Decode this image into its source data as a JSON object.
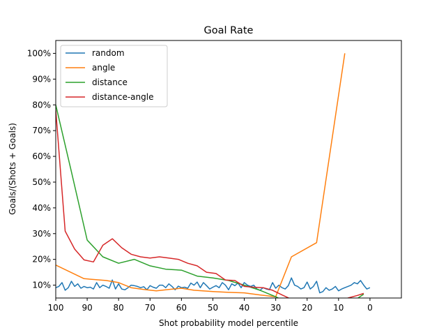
{
  "chart_data": {
    "type": "line",
    "title": "Goal Rate",
    "xlabel": "Shot probability model percentile",
    "ylabel": "Goals/(Shots + Goals)",
    "xlim": [
      100,
      -10
    ],
    "ylim": [
      0.05,
      1.05
    ],
    "x_ticks": [
      100,
      90,
      80,
      70,
      60,
      50,
      40,
      30,
      20,
      10,
      0
    ],
    "x_tick_labels": [
      "100",
      "90",
      "80",
      "70",
      "60",
      "50",
      "40",
      "30",
      "20",
      "10",
      "0"
    ],
    "y_ticks": [
      0.1,
      0.2,
      0.3,
      0.4,
      0.5,
      0.6,
      0.7,
      0.8,
      0.9,
      1.0
    ],
    "y_tick_labels": [
      "10%",
      "20%",
      "30%",
      "40%",
      "50%",
      "60%",
      "70%",
      "80%",
      "90%",
      "100%"
    ],
    "grid": false,
    "legend_position": "top-left",
    "series": [
      {
        "name": "random",
        "color": "#1f77b4",
        "x": [
          100,
          99,
          98,
          97,
          96,
          95,
          94,
          93,
          92,
          91,
          90,
          89,
          88,
          87,
          86,
          85,
          84,
          83,
          82,
          81,
          80,
          79,
          78,
          77,
          76,
          75,
          74,
          73,
          72,
          71,
          70,
          69,
          68,
          67,
          66,
          65,
          64,
          63,
          62,
          61,
          60,
          59,
          58,
          57,
          56,
          55,
          54,
          53,
          52,
          51,
          50,
          49,
          48,
          47,
          46,
          45,
          44,
          43,
          42,
          41,
          40,
          39,
          38,
          37,
          36,
          35,
          34,
          33,
          32,
          31,
          30,
          29,
          28,
          27,
          26,
          25,
          24,
          23,
          22,
          21,
          20,
          19,
          18,
          17,
          16,
          15,
          14,
          13,
          12,
          11,
          10,
          9,
          8,
          7,
          6,
          5,
          4,
          3,
          2,
          1,
          0
        ],
        "y": [
          0.09,
          0.095,
          0.11,
          0.08,
          0.09,
          0.115,
          0.095,
          0.105,
          0.088,
          0.095,
          0.09,
          0.092,
          0.085,
          0.11,
          0.09,
          0.1,
          0.095,
          0.088,
          0.12,
          0.085,
          0.105,
          0.085,
          0.082,
          0.09,
          0.1,
          0.098,
          0.095,
          0.09,
          0.094,
          0.082,
          0.098,
          0.092,
          0.088,
          0.1,
          0.1,
          0.09,
          0.105,
          0.095,
          0.082,
          0.096,
          0.09,
          0.092,
          0.088,
          0.108,
          0.1,
          0.112,
          0.09,
          0.11,
          0.098,
          0.085,
          0.092,
          0.098,
          0.09,
          0.11,
          0.1,
          0.082,
          0.105,
          0.098,
          0.108,
          0.09,
          0.11,
          0.1,
          0.095,
          0.1,
          0.085,
          0.08,
          0.09,
          0.085,
          0.082,
          0.11,
          0.088,
          0.1,
          0.09,
          0.085,
          0.098,
          0.128,
          0.1,
          0.095,
          0.085,
          0.09,
          0.112,
          0.085,
          0.095,
          0.115,
          0.07,
          0.075,
          0.09,
          0.08,
          0.085,
          0.095,
          0.078,
          0.085,
          0.09,
          0.095,
          0.1,
          0.11,
          0.105,
          0.118,
          0.1,
          0.085,
          0.09
        ]
      },
      {
        "name": "angle",
        "color": "#ff7f0e",
        "x": [
          100,
          91,
          84,
          80,
          76,
          72,
          68,
          64,
          60,
          56,
          50,
          45,
          40,
          35,
          30,
          25,
          17,
          8
        ],
        "y": [
          0.178,
          0.125,
          0.118,
          0.11,
          0.09,
          0.083,
          0.078,
          0.083,
          0.088,
          0.08,
          0.075,
          0.072,
          0.07,
          0.062,
          0.055,
          0.21,
          0.265,
          1.0
        ]
      },
      {
        "name": "distance",
        "color": "#2ca02c",
        "x": [
          100,
          95,
          90,
          85,
          80,
          75,
          70,
          65,
          60,
          55,
          50,
          45,
          40,
          35,
          30,
          25,
          20,
          15,
          10,
          5,
          2
        ],
        "y": [
          0.8,
          0.54,
          0.275,
          0.21,
          0.185,
          0.2,
          0.175,
          0.162,
          0.158,
          0.135,
          0.128,
          0.118,
          0.1,
          0.08,
          0.055,
          0.025,
          0.01,
          0.005,
          0.005,
          0.04,
          0.065
        ]
      },
      {
        "name": "distance-angle",
        "color": "#d62728",
        "x": [
          100,
          97,
          94,
          91,
          88,
          85,
          82,
          79,
          76,
          73,
          70,
          67,
          64,
          61,
          58,
          55,
          52,
          49,
          46,
          43,
          40,
          37,
          34,
          31,
          28,
          25,
          22,
          19,
          16,
          13,
          10,
          7,
          4,
          2
        ],
        "y": [
          0.78,
          0.31,
          0.24,
          0.198,
          0.19,
          0.255,
          0.28,
          0.245,
          0.22,
          0.21,
          0.205,
          0.21,
          0.205,
          0.2,
          0.185,
          0.175,
          0.15,
          0.145,
          0.12,
          0.118,
          0.095,
          0.092,
          0.09,
          0.08,
          0.062,
          0.045,
          0.035,
          0.02,
          0.01,
          0.015,
          0.03,
          0.05,
          0.06,
          0.068
        ]
      }
    ]
  }
}
